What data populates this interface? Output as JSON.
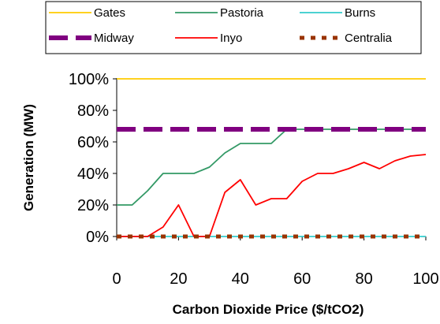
{
  "chart_data": {
    "type": "line",
    "title": "",
    "xlabel": "Carbon Dioxide Price ($/tCO2)",
    "ylabel": "Generation (MW)",
    "xlim": [
      0,
      100
    ],
    "ylim": [
      0,
      100
    ],
    "x_ticks": [
      "0",
      "20",
      "40",
      "60",
      "80",
      "100"
    ],
    "y_ticks": [
      "0%",
      "20%",
      "40%",
      "60%",
      "80%",
      "100%"
    ],
    "x": [
      0,
      5,
      10,
      15,
      20,
      25,
      30,
      35,
      40,
      45,
      50,
      55,
      60,
      65,
      70,
      75,
      80,
      85,
      90,
      95,
      100
    ],
    "grid": false,
    "legend_position": "top",
    "series": [
      {
        "name": "Gates",
        "color": "#FFCC00",
        "style": "solid",
        "values": [
          100,
          100,
          100,
          100,
          100,
          100,
          100,
          100,
          100,
          100,
          100,
          100,
          100,
          100,
          100,
          100,
          100,
          100,
          100,
          100,
          100
        ]
      },
      {
        "name": "Pastoria",
        "color": "#339966",
        "style": "solid",
        "values": [
          20,
          20,
          29,
          40,
          40,
          40,
          44,
          53,
          59,
          59,
          59,
          68,
          68,
          68,
          68,
          68,
          68,
          68,
          68,
          68,
          68
        ]
      },
      {
        "name": "Burns",
        "color": "#33CCCC",
        "style": "solid",
        "values": [
          0,
          0,
          0,
          0,
          0,
          0,
          0,
          0,
          0,
          0,
          0,
          0,
          0,
          0,
          0,
          0,
          0,
          0,
          0,
          0,
          0
        ]
      },
      {
        "name": "Midway",
        "color": "#800080",
        "style": "dashed-thick",
        "values": [
          68,
          68,
          68,
          68,
          68,
          68,
          68,
          68,
          68,
          68,
          68,
          68,
          68,
          68,
          68,
          68,
          68,
          68,
          68,
          68,
          68
        ]
      },
      {
        "name": "Inyo",
        "color": "#FF0000",
        "style": "solid",
        "values": [
          0,
          0,
          0,
          6,
          20,
          0,
          0,
          28,
          36,
          20,
          24,
          24,
          35,
          40,
          40,
          43,
          47,
          43,
          48,
          51,
          52
        ]
      },
      {
        "name": "Centralia",
        "color": "#993300",
        "style": "dotted-thick",
        "values": [
          0,
          0,
          0,
          0,
          0,
          0,
          0,
          0,
          0,
          0,
          0,
          0,
          0,
          0,
          0,
          0,
          0,
          0,
          0,
          0,
          0
        ]
      }
    ]
  }
}
